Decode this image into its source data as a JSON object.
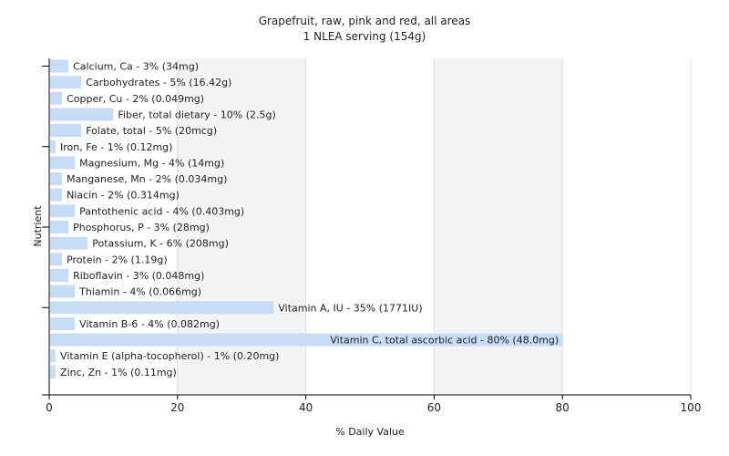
{
  "chart_data": {
    "type": "bar",
    "orientation": "horizontal",
    "title": "Grapefruit, raw, pink and red, all areas",
    "subtitle": "1 NLEA serving (154g)",
    "xlabel": "% Daily Value",
    "ylabel": "Nutrient",
    "xlim": [
      0,
      100
    ],
    "xticks": [
      "0",
      "20",
      "40",
      "60",
      "80",
      "100"
    ],
    "grid": true,
    "bar_color": "#c6ddf7",
    "categories": [
      "Calcium, Ca",
      "Carbohydrates",
      "Copper, Cu",
      "Fiber, total dietary",
      "Folate, total",
      "Iron, Fe",
      "Magnesium, Mg",
      "Manganese, Mn",
      "Niacin",
      "Pantothenic acid",
      "Phosphorus, P",
      "Potassium, K",
      "Protein",
      "Riboflavin",
      "Thiamin",
      "Vitamin A, IU",
      "Vitamin B-6",
      "Vitamin C, total ascorbic acid",
      "Vitamin E (alpha-tocopherol)",
      "Zinc, Zn"
    ],
    "values": [
      3,
      5,
      2,
      10,
      5,
      1,
      4,
      2,
      2,
      4,
      3,
      6,
      2,
      3,
      4,
      35,
      4,
      80,
      1,
      1
    ],
    "labels": [
      "Calcium, Ca - 3% (34mg)",
      "Carbohydrates - 5% (16.42g)",
      "Copper, Cu - 2% (0.049mg)",
      "Fiber, total dietary - 10% (2.5g)",
      "Folate, total - 5% (20mcg)",
      "Iron, Fe - 1% (0.12mg)",
      "Magnesium, Mg - 4% (14mg)",
      "Manganese, Mn - 2% (0.034mg)",
      "Niacin - 2% (0.314mg)",
      "Pantothenic acid - 4% (0.403mg)",
      "Phosphorus, P - 3% (28mg)",
      "Potassium, K - 6% (208mg)",
      "Protein - 2% (1.19g)",
      "Riboflavin - 3% (0.048mg)",
      "Thiamin - 4% (0.066mg)",
      "Vitamin A, IU - 35% (1771IU)",
      "Vitamin B-6 - 4% (0.082mg)",
      "Vitamin C, total ascorbic acid - 80% (48.0mg)",
      "Vitamin E (alpha-tocopherol) - 1% (0.20mg)",
      "Zinc, Zn - 1% (0.11mg)"
    ]
  }
}
